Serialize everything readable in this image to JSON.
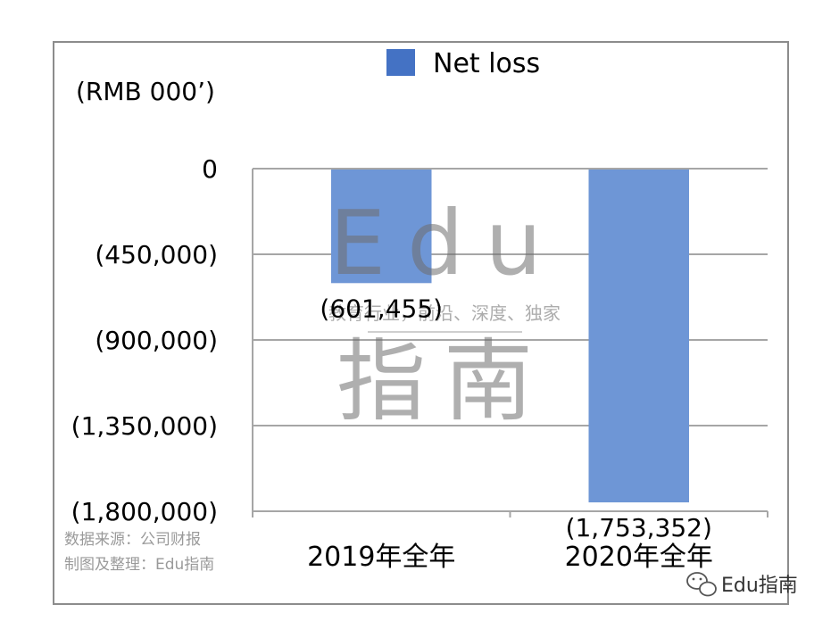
{
  "chart_data": {
    "type": "bar",
    "categories": [
      "2019年全年",
      "2020年全年"
    ],
    "series": [
      {
        "name": "Net loss",
        "values": [
          -601455,
          -1753352
        ],
        "color": "#6e96d6"
      }
    ],
    "data_labels": [
      "(601,455)",
      "(1,753,352)"
    ],
    "ylim": [
      -1800000,
      0
    ],
    "yticks": [
      0,
      -450000,
      -900000,
      -1350000,
      -1800000
    ],
    "ytick_labels": [
      "0",
      "(450,000)",
      "(900,000)",
      "(1,350,000)",
      "(1,800,000)"
    ],
    "unit_label": "(RMB 000’)",
    "legend_position": "top-center",
    "legend_swatch_color": "#4472c4",
    "grid": true
  },
  "source": {
    "line1": "数据来源：公司财报",
    "line2": "制图及整理：Edu指南"
  },
  "watermark": {
    "big_text": "Edu",
    "sub_text": "教育行业，前沿、深度、独家",
    "bottom_text": "指南"
  },
  "brand": {
    "label": "Edu指南",
    "icon": "wechat-icon"
  }
}
